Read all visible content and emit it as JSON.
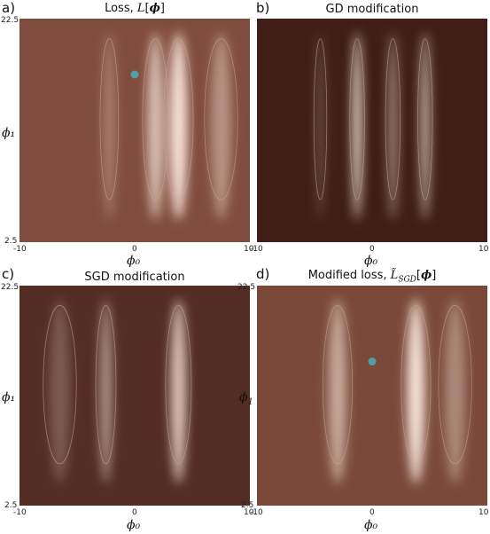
{
  "chart_data": [
    {
      "type": "heatmap",
      "panel_label": "a)",
      "title": "Loss, L[ϕ]",
      "xlabel": "ϕ₀",
      "ylabel": "ϕ₁",
      "xlim": [
        -10,
        10
      ],
      "ylim": [
        2.5,
        22.5
      ],
      "x_ticks": [
        "-10",
        "0",
        "10"
      ],
      "y_ticks": [
        "2.5",
        "22.5"
      ],
      "contours": true,
      "marker": {
        "x": 0.0,
        "y": 17.5,
        "color": "#4f9fa8"
      },
      "ridges": [
        {
          "x": -2.2,
          "w": 0.5,
          "a": 0.35
        },
        {
          "x": 1.8,
          "w": 0.7,
          "a": 0.75
        },
        {
          "x": 3.8,
          "w": 0.8,
          "a": 0.95
        },
        {
          "x": 7.5,
          "w": 0.9,
          "a": 0.45
        }
      ]
    },
    {
      "type": "heatmap",
      "panel_label": "b)",
      "title": "GD modification",
      "xlabel": "ϕ₀",
      "ylabel": "",
      "xlim": [
        -10,
        10
      ],
      "ylim": [
        2.5,
        22.5
      ],
      "x_ticks": [
        "-10",
        "0",
        "10"
      ],
      "y_ticks": [],
      "contours": true,
      "marker": null,
      "ridges": [
        {
          "x": -1.3,
          "w": 0.4,
          "a": 0.95
        },
        {
          "x": 1.8,
          "w": 0.4,
          "a": 0.55
        },
        {
          "x": 4.6,
          "w": 0.4,
          "a": 0.75
        },
        {
          "x": -4.5,
          "w": 0.35,
          "a": 0.25
        }
      ]
    },
    {
      "type": "heatmap",
      "panel_label": "c)",
      "title": "SGD modification",
      "xlabel": "ϕ₀",
      "ylabel": "ϕ₁",
      "xlim": [
        -10,
        10
      ],
      "ylim": [
        2.5,
        22.5
      ],
      "x_ticks": [
        "-10",
        "0",
        "10"
      ],
      "y_ticks": [
        "2.5",
        "22.5"
      ],
      "contours": true,
      "marker": null,
      "ridges": [
        {
          "x": -2.5,
          "w": 0.55,
          "a": 0.55
        },
        {
          "x": 3.8,
          "w": 0.7,
          "a": 0.8
        },
        {
          "x": -6.5,
          "w": 0.9,
          "a": 0.25
        }
      ]
    },
    {
      "type": "heatmap",
      "panel_label": "d)",
      "title": "Modified loss, L̃_SGD[ϕ]",
      "xlabel": "ϕ₀",
      "ylabel": "",
      "xlim": [
        -10,
        10
      ],
      "ylim": [
        2.5,
        22.5
      ],
      "x_ticks": [
        "-10",
        "0",
        "10"
      ],
      "y_ticks": [
        "2.5",
        "22.5"
      ],
      "contours": true,
      "marker": {
        "x": 0.0,
        "y": 15.6,
        "color": "#4f9fa8"
      },
      "ridges": [
        {
          "x": -3.0,
          "w": 0.8,
          "a": 0.6
        },
        {
          "x": 3.8,
          "w": 0.8,
          "a": 0.95
        },
        {
          "x": 7.2,
          "w": 0.9,
          "a": 0.4
        }
      ]
    }
  ],
  "colors": {
    "dark": "#3a1a14",
    "mid": "#b9775f",
    "light": "#fbe9dc",
    "contour": "#c9a898",
    "marker": "#4f9fa8"
  }
}
